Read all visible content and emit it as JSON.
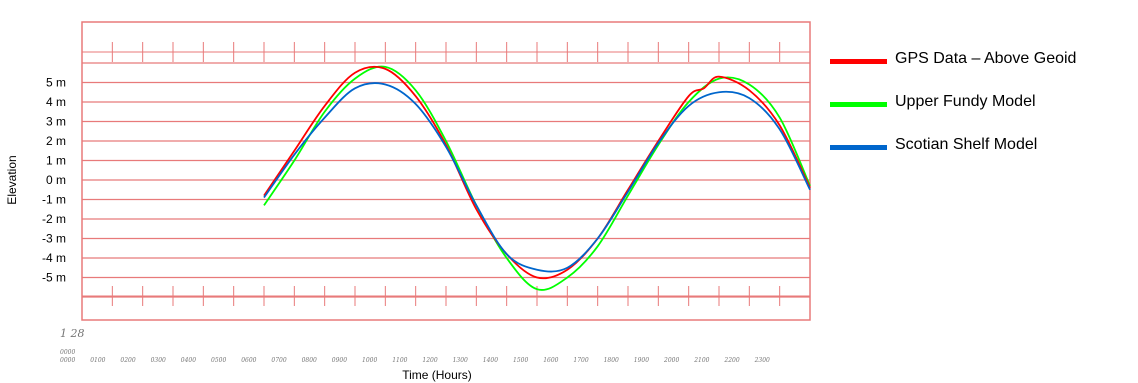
{
  "chart_data": {
    "type": "line",
    "title": "",
    "xlabel": "Time (Hours)",
    "ylabel": "Elevation",
    "date_label": "1 28",
    "date_label_2": "0000",
    "ylim": [
      -6.5,
      6.5
    ],
    "yticks": [
      {
        "v": 5,
        "label": "5 m"
      },
      {
        "v": 4,
        "label": "4 m"
      },
      {
        "v": 3,
        "label": "3 m"
      },
      {
        "v": 2,
        "label": "2 m"
      },
      {
        "v": 1,
        "label": "1 m"
      },
      {
        "v": 0,
        "label": "0 m"
      },
      {
        "v": -1,
        "label": "-1 m"
      },
      {
        "v": -2,
        "label": "-2 m"
      },
      {
        "v": -3,
        "label": "-3 m"
      },
      {
        "v": -4,
        "label": "-4 m"
      },
      {
        "v": -5,
        "label": "-5 m"
      }
    ],
    "xticks": [
      "0000",
      "0100",
      "0200",
      "0300",
      "0400",
      "0500",
      "0600",
      "0700",
      "0800",
      "0900",
      "1000",
      "1100",
      "1200",
      "1300",
      "1400",
      "1500",
      "1600",
      "1700",
      "1800",
      "1900",
      "2000",
      "2100",
      "2200",
      "2300"
    ],
    "grid": true,
    "legend_position": "right",
    "series": [
      {
        "name": "GPS Data – Above Geoid",
        "color": "#ff0000",
        "x": [
          6.0,
          7.0,
          8.0,
          9.0,
          10.0,
          11.0,
          12.0,
          13.0,
          14.0,
          15.0,
          16.0,
          17.0,
          18.0,
          19.0,
          20.0,
          20.5,
          21.0,
          22.0,
          23.0,
          24.0
        ],
        "y": [
          -0.8,
          1.5,
          3.8,
          5.5,
          5.7,
          4.3,
          1.8,
          -1.5,
          -3.8,
          -5.0,
          -4.6,
          -3.0,
          -0.5,
          2.0,
          4.3,
          4.7,
          5.3,
          4.6,
          2.8,
          -0.4
        ]
      },
      {
        "name": "Upper Fundy Model",
        "color": "#00ff00",
        "x": [
          6.0,
          7.0,
          8.0,
          9.0,
          10.0,
          11.0,
          12.0,
          13.0,
          14.0,
          15.0,
          16.0,
          17.0,
          18.0,
          19.0,
          20.0,
          21.0,
          22.0,
          23.0,
          24.0
        ],
        "y": [
          -1.3,
          1.0,
          3.5,
          5.2,
          5.8,
          4.6,
          2.0,
          -1.3,
          -4.0,
          -5.6,
          -5.0,
          -3.4,
          -0.8,
          1.8,
          4.0,
          5.2,
          4.9,
          3.2,
          -0.3
        ]
      },
      {
        "name": "Scotian Shelf Model",
        "color": "#0066cc",
        "x": [
          6.0,
          7.0,
          8.0,
          9.0,
          10.0,
          11.0,
          12.0,
          13.0,
          14.0,
          15.0,
          16.0,
          17.0,
          18.0,
          19.0,
          20.0,
          21.0,
          22.0,
          23.0,
          24.0
        ],
        "y": [
          -0.9,
          1.3,
          3.2,
          4.7,
          4.9,
          3.9,
          1.7,
          -1.3,
          -3.8,
          -4.6,
          -4.5,
          -3.0,
          -0.6,
          1.9,
          3.8,
          4.5,
          4.2,
          2.6,
          -0.5
        ]
      }
    ]
  }
}
